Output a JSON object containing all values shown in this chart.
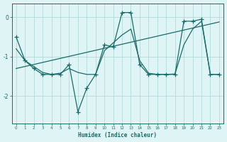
{
  "xlabel": "Humidex (Indice chaleur)",
  "x": [
    0,
    1,
    2,
    3,
    4,
    5,
    6,
    7,
    8,
    9,
    10,
    11,
    12,
    13,
    14,
    15,
    16,
    17,
    18,
    19,
    20,
    21,
    22,
    23
  ],
  "y_main": [
    -0.5,
    -1.1,
    -1.3,
    -1.45,
    -1.45,
    -1.45,
    -1.2,
    -2.4,
    -1.8,
    -1.45,
    -0.7,
    -0.75,
    0.12,
    0.12,
    -1.2,
    -1.45,
    -1.45,
    -1.45,
    -1.45,
    -0.1,
    -0.1,
    -0.05,
    -1.45,
    -1.45
  ],
  "y_smooth": [
    -0.8,
    -1.1,
    -1.25,
    -1.4,
    -1.45,
    -1.42,
    -1.3,
    -1.4,
    -1.45,
    -1.45,
    -0.85,
    -0.65,
    -0.45,
    -0.3,
    -1.1,
    -1.42,
    -1.45,
    -1.45,
    -1.44,
    -0.7,
    -0.3,
    -0.1,
    -1.45,
    -1.45
  ],
  "trend_x": [
    0,
    23
  ],
  "trend_y": [
    -1.3,
    -0.12
  ],
  "line_color": "#1a6b6b",
  "bg_color": "#dff4f4",
  "grid_color": "#aad4d4",
  "ylim": [
    -2.7,
    0.35
  ],
  "xlim": [
    -0.5,
    23.5
  ],
  "yticks": [
    -2,
    -1,
    0
  ],
  "xticks": [
    0,
    1,
    2,
    3,
    4,
    5,
    6,
    7,
    8,
    9,
    10,
    11,
    12,
    13,
    14,
    15,
    16,
    17,
    18,
    19,
    20,
    21,
    22,
    23
  ]
}
